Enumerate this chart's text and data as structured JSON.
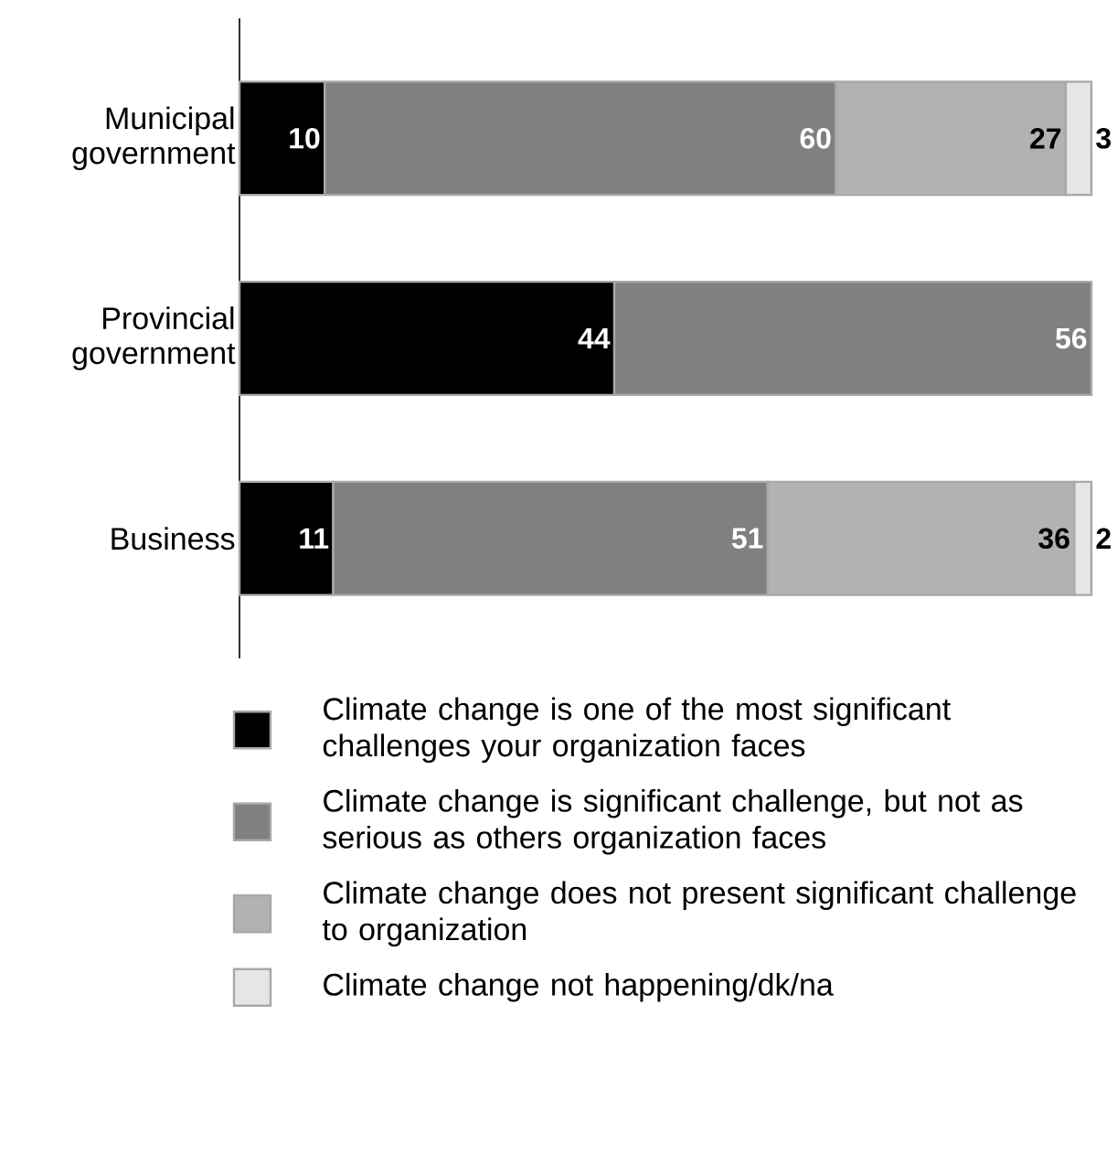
{
  "chart_data": {
    "type": "bar",
    "orientation": "horizontal",
    "stacked": true,
    "data_labels": true,
    "legend": "bottom",
    "categories": [
      "Municipal government",
      "Provincial government",
      "Business"
    ],
    "series": [
      {
        "name": "Climate change is one of the most significant challenges your organization faces",
        "color": "#000000",
        "values": [
          10,
          44,
          11
        ]
      },
      {
        "name": "Climate change is significant challenge, but not as serious as others organization faces",
        "color": "#808080",
        "values": [
          60,
          56,
          51
        ]
      },
      {
        "name": "Climate change does not present significant challenge to organization",
        "color": "#b2b2b2",
        "values": [
          27,
          null,
          36
        ]
      },
      {
        "name": "Climate change not happening/dk/na",
        "color": "#e6e6e6",
        "values": [
          3,
          null,
          2
        ]
      }
    ]
  }
}
